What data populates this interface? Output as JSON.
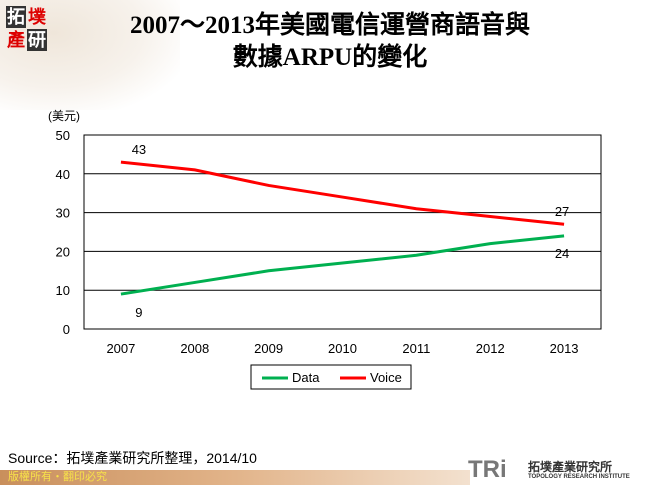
{
  "header": {
    "title_line1": "2007～2013年美國電信運營商語音與",
    "title_line2": "數據ARPU的變化",
    "logo_text": "拓墣產研"
  },
  "chart_data": {
    "type": "line",
    "ylabel": "(美元)",
    "categories": [
      "2007",
      "2008",
      "2009",
      "2010",
      "2011",
      "2012",
      "2013"
    ],
    "ylim": [
      0,
      50
    ],
    "yticks": [
      0,
      10,
      20,
      30,
      40,
      50
    ],
    "grid": true,
    "legend_position": "bottom",
    "series": [
      {
        "name": "Data",
        "color": "#00b050",
        "values": [
          9,
          12,
          15,
          17,
          19,
          22,
          24
        ],
        "labels": {
          "0": "9",
          "6": "24"
        }
      },
      {
        "name": "Voice",
        "color": "#ff0000",
        "values": [
          43,
          41,
          37,
          34,
          31,
          29,
          27
        ],
        "labels": {
          "0": "43",
          "6": "27"
        }
      }
    ]
  },
  "footer": {
    "source": "Source：拓墣產業研究所整理，2014/10",
    "copyright": "版權所有・翻印必究",
    "brand": "TRi",
    "brand_cn": "拓墣產業研究所",
    "brand_en": "TOPOLOGY RESEARCH INSTITUTE"
  }
}
